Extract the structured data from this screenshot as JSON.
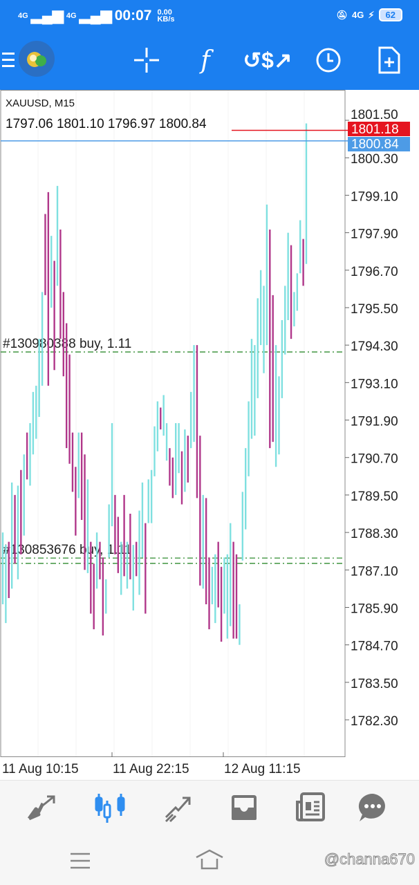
{
  "status_bar": {
    "signal1": "4G",
    "signal2": "4G",
    "time": "00:07",
    "net_speed": "0.00",
    "net_unit": "KB/s",
    "network_right": "4G",
    "battery": "62"
  },
  "toolbar": {
    "icons": [
      "menu-icon",
      "app-logo",
      "crosshair-icon",
      "indicators-icon",
      "trade-icon",
      "timeframe-icon",
      "new-order-icon"
    ]
  },
  "chart": {
    "symbol": "XAUUSD, M15",
    "ohlc": "1797.06 1801.10 1796.97 1800.84",
    "ask_price": "1801.18",
    "bid_price": "1800.84",
    "ask_color": "#e5141f",
    "bid_color": "#4d9be6",
    "up_color": "#7fe0e0",
    "down_color": "#b0378a",
    "orders": [
      {
        "label": "#130980388 buy, 1.11",
        "price": 1794.08
      },
      {
        "label": "#130853676 buy, 1.11",
        "price": 1787.48
      },
      {
        "label": "",
        "price": 1787.31
      }
    ],
    "time_labels": [
      "11 Aug 10:15",
      "11 Aug 22:15",
      "12 Aug 11:15"
    ]
  },
  "chart_data": {
    "type": "bar",
    "ylim": [
      1782.3,
      1801.5
    ],
    "y_ticks": [
      "1801.50",
      "1800.30",
      "1799.10",
      "1797.90",
      "1796.70",
      "1795.50",
      "1794.30",
      "1793.10",
      "1791.90",
      "1790.70",
      "1789.50",
      "1788.30",
      "1787.10",
      "1785.90",
      "1784.70",
      "1783.50",
      "1782.30"
    ],
    "bars": [
      [
        1788.3,
        1786.0,
        "u"
      ],
      [
        1787.9,
        1785.4,
        "u"
      ],
      [
        1788.0,
        1786.2,
        "d"
      ],
      [
        1789.9,
        1786.5,
        "u"
      ],
      [
        1789.5,
        1787.3,
        "d"
      ],
      [
        1789.8,
        1786.8,
        "u"
      ],
      [
        1790.3,
        1787.6,
        "d"
      ],
      [
        1790.8,
        1788.2,
        "u"
      ],
      [
        1791.5,
        1790.0,
        "d"
      ],
      [
        1791.8,
        1789.8,
        "u"
      ],
      [
        1792.8,
        1790.8,
        "u"
      ],
      [
        1793.0,
        1791.3,
        "u"
      ],
      [
        1794.5,
        1792.0,
        "u"
      ],
      [
        1796.0,
        1793.0,
        "u"
      ],
      [
        1798.5,
        1795.9,
        "d"
      ],
      [
        1799.2,
        1793.0,
        "d"
      ],
      [
        1797.8,
        1795.5,
        "u"
      ],
      [
        1797.0,
        1793.5,
        "d"
      ],
      [
        1799.4,
        1796.2,
        "u"
      ],
      [
        1798.0,
        1794.5,
        "d"
      ],
      [
        1796.0,
        1793.3,
        "d"
      ],
      [
        1795.0,
        1791.0,
        "d"
      ],
      [
        1794.0,
        1790.5,
        "d"
      ],
      [
        1791.5,
        1789.6,
        "d"
      ],
      [
        1790.4,
        1788.2,
        "d"
      ],
      [
        1791.5,
        1789.4,
        "u"
      ],
      [
        1791.5,
        1788.7,
        "d"
      ],
      [
        1790.8,
        1787.1,
        "d"
      ],
      [
        1790.0,
        1787.0,
        "u"
      ],
      [
        1788.0,
        1785.7,
        "d"
      ],
      [
        1787.3,
        1785.2,
        "d"
      ],
      [
        1788.3,
        1786.5,
        "u"
      ],
      [
        1788.0,
        1786.8,
        "d"
      ],
      [
        1787.5,
        1785.0,
        "d"
      ],
      [
        1786.8,
        1785.7,
        "u"
      ],
      [
        1789.2,
        1787.5,
        "u"
      ],
      [
        1791.8,
        1788.5,
        "u"
      ],
      [
        1789.5,
        1787.6,
        "d"
      ],
      [
        1788.8,
        1787.0,
        "d"
      ],
      [
        1788.0,
        1786.3,
        "u"
      ],
      [
        1789.5,
        1786.9,
        "d"
      ],
      [
        1788.0,
        1786.5,
        "u"
      ],
      [
        1788.9,
        1786.8,
        "d"
      ],
      [
        1787.9,
        1785.8,
        "u"
      ],
      [
        1788.0,
        1786.9,
        "d"
      ],
      [
        1789.0,
        1786.3,
        "u"
      ],
      [
        1789.9,
        1787.5,
        "u"
      ],
      [
        1788.6,
        1785.7,
        "d"
      ],
      [
        1790.0,
        1788.6,
        "u"
      ],
      [
        1790.3,
        1788.6,
        "u"
      ],
      [
        1791.7,
        1790.1,
        "u"
      ],
      [
        1792.5,
        1790.9,
        "u"
      ],
      [
        1792.3,
        1791.6,
        "d"
      ],
      [
        1792.7,
        1791.4,
        "u"
      ],
      [
        1791.8,
        1790.6,
        "u"
      ],
      [
        1791.0,
        1789.8,
        "d"
      ],
      [
        1790.7,
        1789.4,
        "d"
      ],
      [
        1791.8,
        1789.5,
        "u"
      ],
      [
        1791.8,
        1790.2,
        "u"
      ],
      [
        1790.9,
        1789.2,
        "d"
      ],
      [
        1791.6,
        1789.6,
        "u"
      ],
      [
        1791.4,
        1789.9,
        "d"
      ],
      [
        1792.8,
        1791.0,
        "u"
      ],
      [
        1794.3,
        1791.2,
        "u"
      ],
      [
        1794.3,
        1789.4,
        "d"
      ],
      [
        1791.4,
        1786.6,
        "d"
      ],
      [
        1789.5,
        1786.5,
        "u"
      ],
      [
        1789.4,
        1786.0,
        "d"
      ],
      [
        1787.5,
        1785.2,
        "d"
      ],
      [
        1787.2,
        1786.0,
        "u"
      ],
      [
        1787.6,
        1785.4,
        "u"
      ],
      [
        1788.0,
        1785.9,
        "d"
      ],
      [
        1787.2,
        1784.8,
        "d"
      ],
      [
        1787.5,
        1785.7,
        "u"
      ],
      [
        1787.6,
        1784.9,
        "u"
      ],
      [
        1788.6,
        1785.3,
        "u"
      ],
      [
        1788.0,
        1784.9,
        "d"
      ],
      [
        1787.6,
        1784.9,
        "d"
      ],
      [
        1786.0,
        1784.7,
        "u"
      ],
      [
        1789.6,
        1787.4,
        "u"
      ],
      [
        1791.0,
        1788.4,
        "u"
      ],
      [
        1792.5,
        1790.1,
        "u"
      ],
      [
        1794.5,
        1791.3,
        "u"
      ],
      [
        1794.3,
        1791.4,
        "u"
      ],
      [
        1795.8,
        1792.6,
        "u"
      ],
      [
        1796.7,
        1794.3,
        "u"
      ],
      [
        1796.2,
        1793.4,
        "u"
      ],
      [
        1798.8,
        1794.3,
        "u"
      ],
      [
        1798.0,
        1791.0,
        "d"
      ],
      [
        1795.9,
        1791.2,
        "d"
      ],
      [
        1794.3,
        1790.4,
        "u"
      ],
      [
        1793.3,
        1790.8,
        "u"
      ],
      [
        1795.1,
        1792.6,
        "u"
      ],
      [
        1796.2,
        1794.0,
        "u"
      ],
      [
        1797.9,
        1795.1,
        "u"
      ],
      [
        1797.5,
        1794.5,
        "d"
      ],
      [
        1796.0,
        1794.9,
        "u"
      ],
      [
        1796.6,
        1795.4,
        "u"
      ],
      [
        1798.3,
        1796.6,
        "u"
      ],
      [
        1797.7,
        1796.2,
        "d"
      ],
      [
        1801.4,
        1796.9,
        "u"
      ]
    ]
  },
  "bottom_nav": {
    "items": [
      "quotes-icon",
      "chart-icon",
      "trade-icon",
      "history-icon",
      "news-icon",
      "messages-icon"
    ],
    "active_color": "#2f8ef0"
  },
  "watermark": "@channa670"
}
